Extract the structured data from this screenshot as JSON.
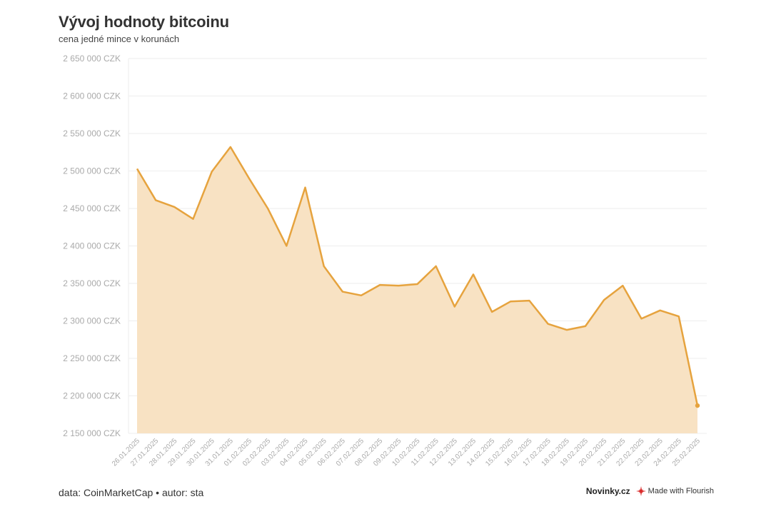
{
  "header": {
    "title": "Vývoj hodnoty bitcoinu",
    "subtitle": "cena jedné mince v korunách"
  },
  "footer": {
    "source": "data: CoinMarketCap • autor: sta",
    "brand": "Novinky.cz",
    "flourish": "Made with Flourish"
  },
  "colors": {
    "line": "#e6a33e",
    "area": "#f8e2c3",
    "grid": "#eeeeee",
    "tick_text": "#aaaaaa"
  },
  "chart_data": {
    "type": "area",
    "x": [
      "26.01.2025",
      "27.01.2025",
      "28.01.2025",
      "29.01.2025",
      "30.01.2025",
      "31.01.2025",
      "01.02.2025",
      "02.02.2025",
      "03.02.2025",
      "04.02.2025",
      "05.02.2025",
      "06.02.2025",
      "07.02.2025",
      "08.02.2025",
      "09.02.2025",
      "10.02.2025",
      "11.02.2025",
      "12.02.2025",
      "13.02.2025",
      "14.02.2025",
      "15.02.2025",
      "16.02.2025",
      "17.02.2025",
      "18.02.2025",
      "19.02.2025",
      "20.02.2025",
      "21.02.2025",
      "22.02.2025",
      "23.02.2025",
      "24.02.2025",
      "25.02.2025"
    ],
    "series": [
      {
        "values": [
          2503000,
          2461000,
          2452000,
          2436000,
          2499000,
          2532000,
          2490000,
          2450000,
          2400000,
          2478000,
          2373000,
          2339000,
          2334000,
          2348000,
          2347000,
          2349000,
          2373000,
          2319000,
          2362000,
          2312000,
          2326000,
          2327000,
          2296000,
          2288000,
          2293000,
          2328000,
          2347000,
          2303000,
          2314000,
          2306000,
          2187000
        ]
      }
    ],
    "ylim": [
      2150000,
      2650000
    ],
    "yticks": [
      "2 150 000 CZK",
      "2 200 000 CZK",
      "2 250 000 CZK",
      "2 300 000 CZK",
      "2 350 000 CZK",
      "2 400 000 CZK",
      "2 450 000 CZK",
      "2 500 000 CZK",
      "2 550 000 CZK",
      "2 600 000 CZK",
      "2 650 000 CZK"
    ],
    "title": "Vývoj hodnoty bitcoinu",
    "subtitle": "cena jedné mince v korunách",
    "xlabel": "",
    "ylabel": "",
    "grid": true,
    "legend": "none"
  }
}
